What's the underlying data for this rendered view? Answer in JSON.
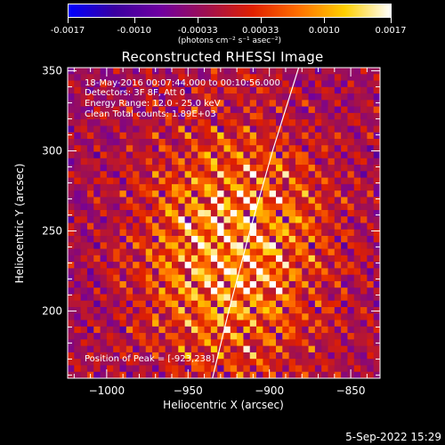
{
  "colorbar": {
    "tick_labels": [
      "-0.0017",
      "-0.0010",
      "-0.00033",
      "0.00033",
      "0.0010",
      "0.0017"
    ],
    "tick_values": [
      -0.0017,
      -0.001,
      -0.00033,
      0.00033,
      0.001,
      0.0017
    ],
    "range": [
      -0.0017,
      0.0017
    ],
    "units_label": "(photons cm⁻² s⁻¹ asec⁻²)"
  },
  "title": "Reconstructed RHESSI Image",
  "annotations": {
    "time_range": "18-May-2016 00:07:44.000 to 00:10:56.000",
    "detectors": "Detectors: 3F 8F, Att 0",
    "energy_range": "Energy Range: 12.0 - 25.0 keV",
    "clean": "Clean     Total counts: 1.89E+03",
    "peak": "Position of Peak = [-923,238]"
  },
  "timestamp": "5-Sep-2022 15:29",
  "chart_data": {
    "type": "heatmap",
    "title": "Reconstructed RHESSI Image",
    "xlabel": "Heliocentric X (arcsec)",
    "ylabel": "Heliocentric Y (arcsec)",
    "xlim": [
      -1024,
      -832
    ],
    "ylim": [
      158,
      352
    ],
    "x_ticks": [
      -1000,
      -950,
      -900,
      -850
    ],
    "y_ticks": [
      200,
      250,
      300,
      350
    ],
    "x_tick_labels": [
      "−1000",
      "−950",
      "−900",
      "−850"
    ],
    "y_tick_labels": [
      "200",
      "250",
      "300",
      "350"
    ],
    "peak_position": [
      -923,
      238
    ],
    "colormap": [
      "#0000ff",
      "#3a00a0",
      "#7000a0",
      "#a01050",
      "#e02000",
      "#ff7000",
      "#ffd000",
      "#ffffff"
    ],
    "value_range": [
      -0.0017,
      0.0017
    ],
    "limb_curve": [
      [
        -935,
        158
      ],
      [
        -925,
        200
      ],
      [
        -912,
        250
      ],
      [
        -898,
        300
      ],
      [
        -882,
        352
      ]
    ]
  }
}
